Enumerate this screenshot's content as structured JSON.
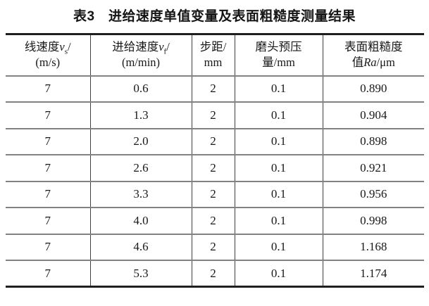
{
  "page": {
    "title": "表3　进给速度单值变量及表面粗糙度测量结果",
    "background_color": "#ffffff",
    "text_color": "#181818",
    "outer_border_color": "#1e1e1e",
    "row_separator_color": "#828282",
    "column_separator_color": "#3f3f3f"
  },
  "table": {
    "columns": [
      {
        "id": "linear-speed",
        "line1": [
          {
            "style": "text",
            "value": "线速度"
          },
          {
            "style": "italic",
            "value": "v"
          },
          {
            "style": "subscript",
            "value": "s"
          },
          {
            "style": "text",
            "value": "/"
          }
        ],
        "line2": [
          {
            "style": "text",
            "value": "(m/s)"
          }
        ]
      },
      {
        "id": "feed-speed",
        "line1": [
          {
            "style": "text",
            "value": "进给速度"
          },
          {
            "style": "italic",
            "value": "v"
          },
          {
            "style": "subscript",
            "value": "f"
          },
          {
            "style": "text",
            "value": "/"
          }
        ],
        "line2": [
          {
            "style": "text",
            "value": "(m/min)"
          }
        ]
      },
      {
        "id": "step-distance",
        "line1": [
          {
            "style": "text",
            "value": "步距/"
          }
        ],
        "line2": [
          {
            "style": "text",
            "value": "mm"
          }
        ]
      },
      {
        "id": "grinding-head-preload",
        "line1": [
          {
            "style": "text",
            "value": "磨头预压"
          }
        ],
        "line2": [
          {
            "style": "text",
            "value": "量/mm"
          }
        ]
      },
      {
        "id": "surface-roughness",
        "line1": [
          {
            "style": "text",
            "value": "表面粗糙度"
          }
        ],
        "line2": [
          {
            "style": "text",
            "value": "值"
          },
          {
            "style": "italic",
            "value": "Ra"
          },
          {
            "style": "text",
            "value": "/μm"
          }
        ]
      }
    ],
    "rows": [
      [
        "7",
        "0.6",
        "2",
        "0.1",
        "0.890"
      ],
      [
        "7",
        "1.3",
        "2",
        "0.1",
        "0.904"
      ],
      [
        "7",
        "2.0",
        "2",
        "0.1",
        "0.898"
      ],
      [
        "7",
        "2.6",
        "2",
        "0.1",
        "0.921"
      ],
      [
        "7",
        "3.3",
        "2",
        "0.1",
        "0.956"
      ],
      [
        "7",
        "4.0",
        "2",
        "0.1",
        "0.998"
      ],
      [
        "7",
        "4.6",
        "2",
        "0.1",
        "1.168"
      ],
      [
        "7",
        "5.3",
        "2",
        "0.1",
        "1.174"
      ]
    ]
  },
  "chart_data": {
    "type": "table",
    "title": "表3　进给速度单值变量及表面粗糙度测量结果",
    "columns": [
      "线速度vs/(m/s)",
      "进给速度vf/(m/min)",
      "步距/mm",
      "磨头预压量/mm",
      "表面粗糙度值Ra/μm"
    ],
    "rows": [
      [
        7,
        0.6,
        2,
        0.1,
        0.89
      ],
      [
        7,
        1.3,
        2,
        0.1,
        0.904
      ],
      [
        7,
        2.0,
        2,
        0.1,
        0.898
      ],
      [
        7,
        2.6,
        2,
        0.1,
        0.921
      ],
      [
        7,
        3.3,
        2,
        0.1,
        0.956
      ],
      [
        7,
        4.0,
        2,
        0.1,
        0.998
      ],
      [
        7,
        4.6,
        2,
        0.1,
        1.168
      ],
      [
        7,
        5.3,
        2,
        0.1,
        1.174
      ]
    ]
  }
}
